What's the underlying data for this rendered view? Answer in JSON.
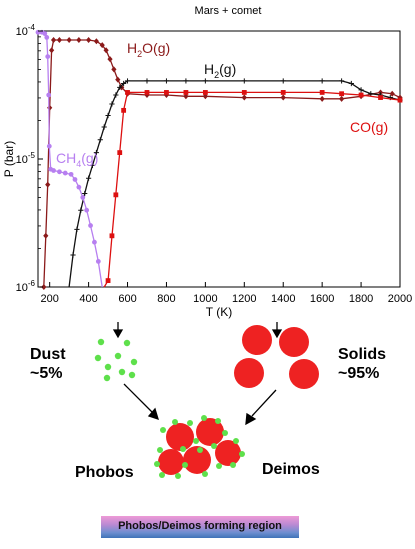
{
  "chart_data": {
    "type": "line",
    "title": "Mars + comet",
    "xlabel": "T (K)",
    "ylabel": "P (bar)",
    "xlim": [
      140,
      2000
    ],
    "ylim_log10": [
      -6,
      -4
    ],
    "log_y": true,
    "x_ticks": [
      "200",
      "400",
      "600",
      "800",
      "1000",
      "1200",
      "1400",
      "1600",
      "1800",
      "2000"
    ],
    "y_ticks": [
      "10-6",
      "10-5",
      "10-4"
    ],
    "series": [
      {
        "name": "H2O(g)",
        "color": "#8b1a1a",
        "marker": "diamond",
        "points": [
          [
            150,
            -6.6
          ],
          [
            160,
            -6.3
          ],
          [
            170,
            -6.0
          ],
          [
            180,
            -5.6
          ],
          [
            190,
            -5.2
          ],
          [
            200,
            -4.6
          ],
          [
            210,
            -4.15
          ],
          [
            220,
            -4.07
          ],
          [
            250,
            -4.07
          ],
          [
            300,
            -4.07
          ],
          [
            350,
            -4.07
          ],
          [
            400,
            -4.07
          ],
          [
            440,
            -4.08
          ],
          [
            470,
            -4.11
          ],
          [
            490,
            -4.15
          ],
          [
            510,
            -4.22
          ],
          [
            530,
            -4.3
          ],
          [
            550,
            -4.38
          ],
          [
            570,
            -4.44
          ],
          [
            600,
            -4.49
          ],
          [
            700,
            -4.5
          ],
          [
            800,
            -4.5
          ],
          [
            900,
            -4.51
          ],
          [
            1000,
            -4.51
          ],
          [
            1200,
            -4.52
          ],
          [
            1400,
            -4.52
          ],
          [
            1600,
            -4.53
          ],
          [
            1700,
            -4.53
          ],
          [
            1800,
            -4.51
          ],
          [
            1900,
            -4.48
          ],
          [
            1960,
            -4.49
          ],
          [
            2000,
            -4.52
          ]
        ]
      },
      {
        "name": "H2(g)",
        "color": "#111111",
        "marker": "plus",
        "points": [
          [
            300,
            -6.2
          ],
          [
            320,
            -5.75
          ],
          [
            340,
            -5.55
          ],
          [
            360,
            -5.4
          ],
          [
            380,
            -5.27
          ],
          [
            400,
            -5.15
          ],
          [
            420,
            -5.05
          ],
          [
            440,
            -4.95
          ],
          [
            460,
            -4.85
          ],
          [
            480,
            -4.75
          ],
          [
            500,
            -4.66
          ],
          [
            520,
            -4.57
          ],
          [
            540,
            -4.5
          ],
          [
            560,
            -4.44
          ],
          [
            580,
            -4.41
          ],
          [
            600,
            -4.39
          ],
          [
            700,
            -4.39
          ],
          [
            800,
            -4.39
          ],
          [
            900,
            -4.39
          ],
          [
            1000,
            -4.39
          ],
          [
            1200,
            -4.39
          ],
          [
            1400,
            -4.39
          ],
          [
            1600,
            -4.39
          ],
          [
            1700,
            -4.39
          ],
          [
            1750,
            -4.41
          ],
          [
            1800,
            -4.46
          ],
          [
            1850,
            -4.49
          ],
          [
            1900,
            -4.5
          ],
          [
            1950,
            -4.52
          ],
          [
            2000,
            -4.54
          ]
        ]
      },
      {
        "name": "CH4(g)",
        "color": "#b77ff0",
        "marker": "circle",
        "points": [
          [
            140,
            -4.01
          ],
          [
            160,
            -4.01
          ],
          [
            175,
            -4.02
          ],
          [
            185,
            -4.05
          ],
          [
            190,
            -4.2
          ],
          [
            195,
            -4.5
          ],
          [
            198,
            -4.9
          ],
          [
            205,
            -5.08
          ],
          [
            220,
            -5.09
          ],
          [
            250,
            -5.1
          ],
          [
            280,
            -5.11
          ],
          [
            310,
            -5.12
          ],
          [
            330,
            -5.16
          ],
          [
            350,
            -5.22
          ],
          [
            370,
            -5.3
          ],
          [
            390,
            -5.4
          ],
          [
            410,
            -5.52
          ],
          [
            430,
            -5.65
          ],
          [
            450,
            -5.8
          ],
          [
            470,
            -6.05
          ]
        ]
      },
      {
        "name": "CO(g)",
        "color": "#dd1010",
        "marker": "square",
        "points": [
          [
            480,
            -6.3
          ],
          [
            500,
            -5.95
          ],
          [
            520,
            -5.6
          ],
          [
            540,
            -5.28
          ],
          [
            560,
            -4.95
          ],
          [
            580,
            -4.62
          ],
          [
            600,
            -4.48
          ],
          [
            700,
            -4.48
          ],
          [
            800,
            -4.48
          ],
          [
            900,
            -4.48
          ],
          [
            1000,
            -4.48
          ],
          [
            1200,
            -4.48
          ],
          [
            1400,
            -4.48
          ],
          [
            1600,
            -4.48
          ],
          [
            1700,
            -4.49
          ],
          [
            1800,
            -4.5
          ],
          [
            1900,
            -4.52
          ],
          [
            2000,
            -4.54
          ]
        ]
      }
    ],
    "series_labels": [
      {
        "series": "H2O(g)",
        "base": "H",
        "sub": "2",
        "rest": "O(g)"
      },
      {
        "series": "H2(g)",
        "base": "H",
        "sub": "2",
        "rest": "(g)"
      },
      {
        "series": "CH4(g)",
        "base": "CH",
        "sub": "4",
        "rest": "(g)"
      },
      {
        "series": "CO(g)",
        "base": "CO(g)",
        "sub": "",
        "rest": ""
      }
    ]
  },
  "diagram": {
    "dust_label": "Dust\n~5%",
    "solids_label": "Solids\n~95%",
    "phobos_label": "Phobos",
    "deimos_label": "Deimos",
    "region_label": "Phobos/Deimos forming region",
    "dust_color": "#5ee04b",
    "solid_color": "#ee2222"
  }
}
